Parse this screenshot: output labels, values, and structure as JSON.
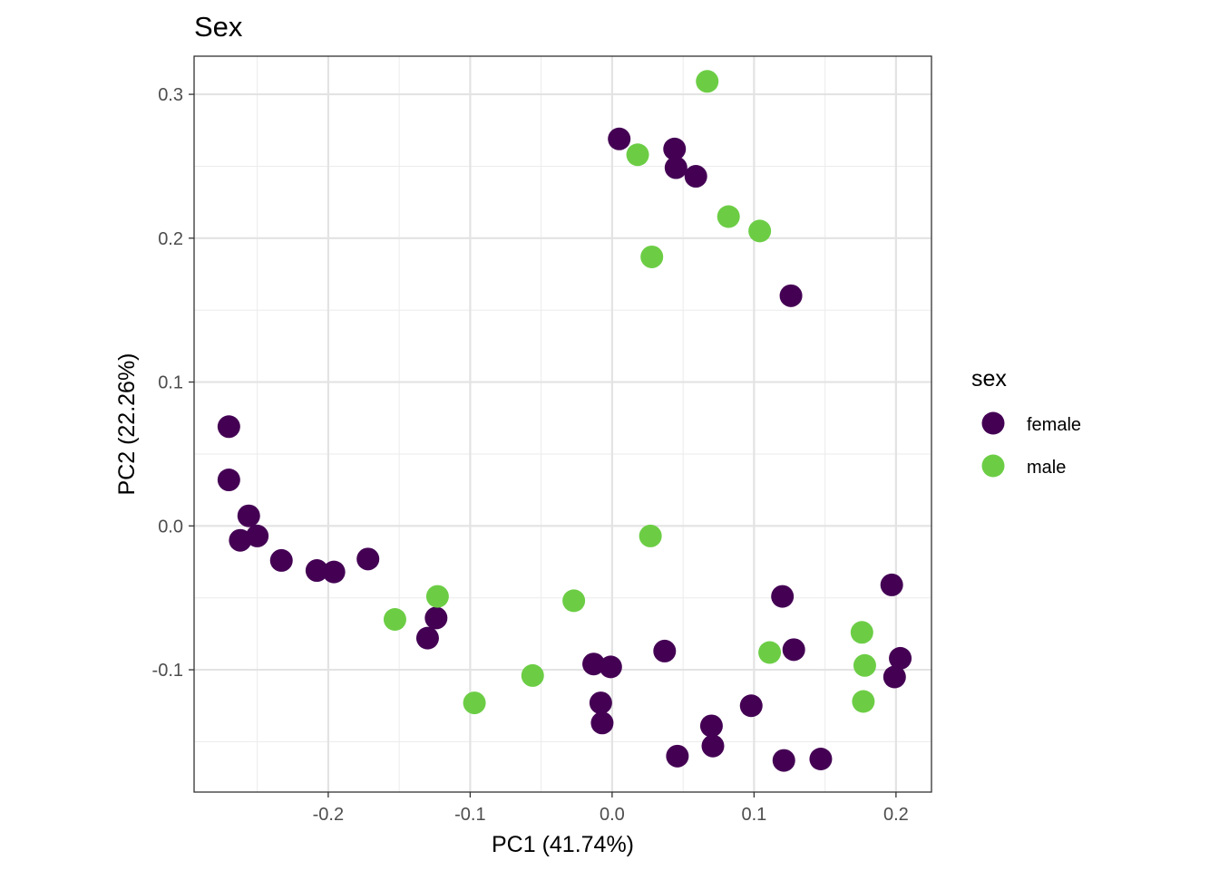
{
  "chart_data": {
    "type": "scatter",
    "title": "Sex",
    "xlabel": "PC1 (41.74%)",
    "ylabel": "PC2 (22.26%)",
    "xlim": [
      -0.2945,
      0.225
    ],
    "ylim": [
      -0.185,
      0.3265
    ],
    "x_ticks": [
      -0.2,
      -0.1,
      0.0,
      0.1,
      0.2
    ],
    "x_tick_labels": [
      "-0.2",
      "-0.1",
      "0.0",
      "0.1",
      "0.2"
    ],
    "y_ticks": [
      -0.1,
      0.0,
      0.1,
      0.2,
      0.3
    ],
    "y_tick_labels": [
      "-0.1",
      "0.0",
      "0.1",
      "0.2",
      "0.3"
    ],
    "grid": true,
    "legend_title": "sex",
    "legend_position": "right",
    "series": [
      {
        "name": "female",
        "color": "#440154",
        "points": [
          [
            -0.27,
            0.069
          ],
          [
            -0.27,
            0.032
          ],
          [
            -0.256,
            0.007
          ],
          [
            -0.25,
            -0.007
          ],
          [
            -0.262,
            -0.01
          ],
          [
            -0.233,
            -0.024
          ],
          [
            -0.208,
            -0.031
          ],
          [
            -0.196,
            -0.032
          ],
          [
            -0.172,
            -0.023
          ],
          [
            -0.124,
            -0.064
          ],
          [
            -0.13,
            -0.078
          ],
          [
            0.005,
            0.269
          ],
          [
            0.044,
            0.262
          ],
          [
            0.045,
            0.249
          ],
          [
            0.059,
            0.243
          ],
          [
            0.126,
            0.16
          ],
          [
            -0.013,
            -0.096
          ],
          [
            -0.001,
            -0.098
          ],
          [
            -0.008,
            -0.123
          ],
          [
            -0.007,
            -0.137
          ],
          [
            0.037,
            -0.087
          ],
          [
            0.046,
            -0.16
          ],
          [
            0.07,
            -0.139
          ],
          [
            0.071,
            -0.153
          ],
          [
            0.098,
            -0.125
          ],
          [
            0.12,
            -0.049
          ],
          [
            0.128,
            -0.086
          ],
          [
            0.121,
            -0.163
          ],
          [
            0.147,
            -0.162
          ],
          [
            0.197,
            -0.041
          ],
          [
            0.203,
            -0.092
          ],
          [
            0.199,
            -0.105
          ]
        ]
      },
      {
        "name": "male",
        "color": "#6ccd45",
        "points": [
          [
            0.067,
            0.309
          ],
          [
            0.018,
            0.258
          ],
          [
            0.082,
            0.215
          ],
          [
            0.104,
            0.205
          ],
          [
            0.028,
            0.187
          ],
          [
            0.027,
            -0.007
          ],
          [
            -0.027,
            -0.052
          ],
          [
            -0.123,
            -0.049
          ],
          [
            -0.153,
            -0.065
          ],
          [
            -0.056,
            -0.104
          ],
          [
            -0.097,
            -0.123
          ],
          [
            0.111,
            -0.088
          ],
          [
            0.176,
            -0.074
          ],
          [
            0.178,
            -0.097
          ],
          [
            0.177,
            -0.122
          ]
        ]
      }
    ]
  }
}
